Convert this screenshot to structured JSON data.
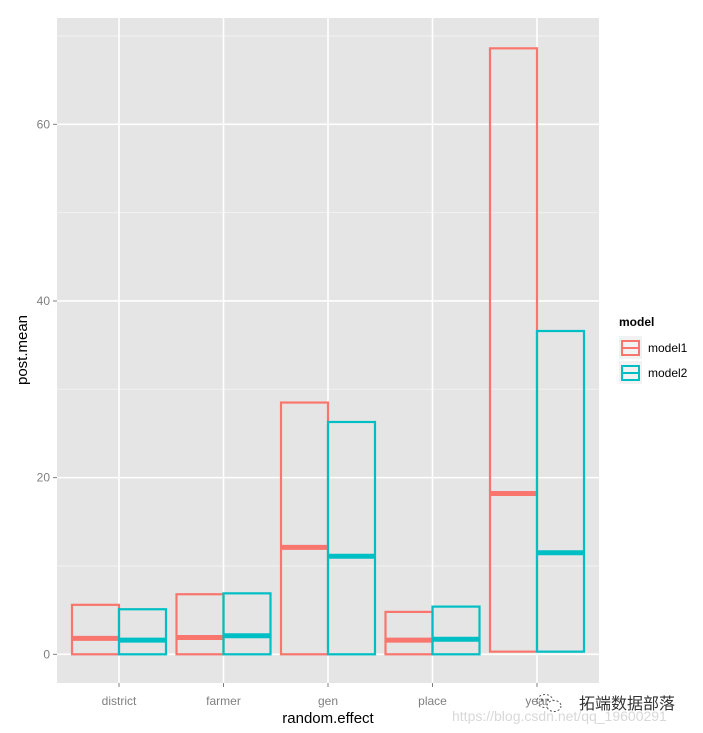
{
  "chart_data": {
    "type": "crossbar",
    "title": "",
    "xlabel": "random.effect",
    "ylabel": "post.mean",
    "categories": [
      "district",
      "farmer",
      "gen",
      "place",
      "year"
    ],
    "series": [
      {
        "name": "model1",
        "color": "#F8766D",
        "lower": [
          0,
          0,
          0,
          0,
          0.3
        ],
        "mean": [
          1.8,
          1.9,
          12.1,
          1.6,
          18.2
        ],
        "upper": [
          5.6,
          6.8,
          28.5,
          4.8,
          68.6
        ]
      },
      {
        "name": "model2",
        "color": "#00BFC4",
        "lower": [
          0,
          0,
          0,
          0,
          0.3
        ],
        "mean": [
          1.6,
          2.1,
          11.1,
          1.7,
          11.5
        ],
        "upper": [
          5.1,
          6.9,
          26.3,
          5.4,
          36.6
        ]
      }
    ],
    "yticks": [
      0,
      20,
      40,
      60
    ],
    "ylim": [
      -3.3,
      72
    ],
    "grid": true,
    "panel_background": "#E5E5E5",
    "gridline_color": "#FFFFFF",
    "legend": {
      "title": "model",
      "position": "right",
      "entries": [
        "model1",
        "model2"
      ]
    }
  },
  "watermark": {
    "brand": "拓端数据部落",
    "url": "https://blog.csdn.net/qq_19600291"
  }
}
